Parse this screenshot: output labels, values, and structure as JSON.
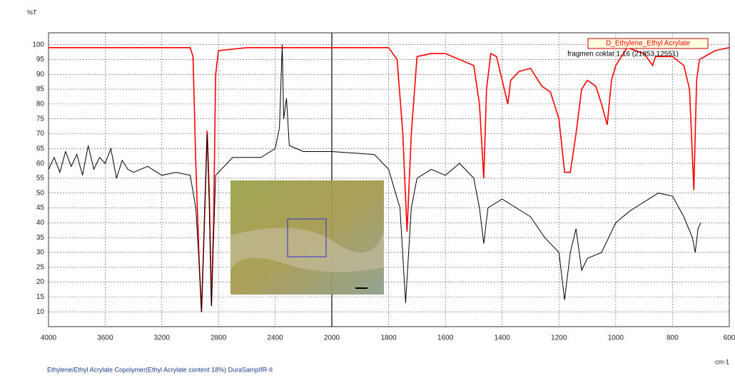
{
  "chart_data": {
    "type": "line",
    "title": "Ethylene/Ethyl Acrylate Copolymer(Ethyl Acrylate content 18%)  DuraSampIIR-II",
    "ylabel": "%T",
    "xlabel": "cm-1",
    "xlim": [
      4000,
      600
    ],
    "x_scale_change": 2000,
    "xticks": [
      4000,
      3600,
      3200,
      2800,
      2400,
      2000,
      1800,
      1600,
      1400,
      1200,
      1000,
      800,
      600
    ],
    "ylim": [
      5,
      104
    ],
    "yticks": [
      10,
      15,
      20,
      25,
      30,
      35,
      40,
      45,
      50,
      55,
      60,
      65,
      70,
      75,
      80,
      85,
      90,
      95,
      100
    ],
    "grid": true,
    "legend": "top-right",
    "series": [
      {
        "name": "D_Ethylene_Ethyl Acrylate",
        "color": "#ff0000",
        "x": [
          4000,
          3500,
          3000,
          2980,
          2960,
          2935,
          2920,
          2900,
          2880,
          2865,
          2850,
          2835,
          2820,
          2800,
          2600,
          2400,
          2200,
          2000,
          1800,
          1770,
          1750,
          1735,
          1720,
          1700,
          1650,
          1600,
          1500,
          1480,
          1465,
          1455,
          1440,
          1420,
          1380,
          1370,
          1340,
          1300,
          1260,
          1230,
          1200,
          1180,
          1160,
          1140,
          1120,
          1100,
          1070,
          1050,
          1030,
          1015,
          1000,
          960,
          900,
          870,
          860,
          800,
          760,
          740,
          725,
          715,
          705,
          650,
          600
        ],
        "values": [
          99,
          99,
          99,
          96,
          60,
          25,
          10,
          40,
          71,
          50,
          12,
          40,
          90,
          98,
          99,
          99,
          99,
          99,
          99,
          95,
          70,
          37,
          70,
          96,
          97,
          97,
          93,
          80,
          55,
          85,
          97,
          96,
          80,
          88,
          91,
          92,
          86,
          84,
          75,
          57,
          57,
          70,
          85,
          88,
          86,
          80,
          73,
          88,
          93,
          99,
          97,
          93,
          96,
          96,
          93,
          85,
          51,
          88,
          95,
          98,
          99
        ]
      },
      {
        "name": "fragmen coklat 1.16 (21853,12551)",
        "color": "#000000",
        "x": [
          4000,
          3960,
          3920,
          3880,
          3840,
          3800,
          3760,
          3720,
          3680,
          3640,
          3600,
          3560,
          3520,
          3480,
          3440,
          3400,
          3300,
          3200,
          3100,
          3000,
          2960,
          2935,
          2920,
          2900,
          2880,
          2865,
          2850,
          2835,
          2820,
          2700,
          2500,
          2400,
          2370,
          2350,
          2340,
          2320,
          2300,
          2200,
          2000,
          1850,
          1800,
          1760,
          1740,
          1720,
          1700,
          1650,
          1600,
          1550,
          1500,
          1480,
          1465,
          1450,
          1400,
          1350,
          1300,
          1250,
          1200,
          1180,
          1160,
          1140,
          1120,
          1100,
          1050,
          1000,
          950,
          900,
          850,
          800,
          760,
          730,
          720,
          710,
          700
        ],
        "values": [
          58,
          62,
          57,
          64,
          59,
          63,
          56,
          66,
          58,
          62,
          60,
          65,
          55,
          61,
          58,
          57,
          59,
          56,
          57,
          56,
          45,
          25,
          10,
          40,
          70,
          45,
          12,
          35,
          56,
          62,
          62,
          65,
          72,
          100,
          75,
          82,
          66,
          64,
          64,
          63,
          58,
          45,
          13,
          45,
          55,
          58,
          56,
          60,
          55,
          45,
          33,
          45,
          48,
          45,
          42,
          35,
          30,
          14,
          30,
          38,
          24,
          28,
          30,
          40,
          44,
          47,
          50,
          49,
          42,
          35,
          30,
          38,
          40
        ]
      }
    ]
  }
}
